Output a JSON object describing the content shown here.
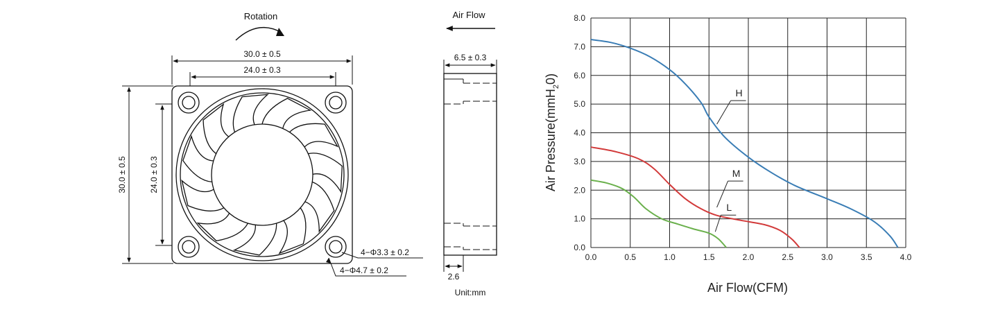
{
  "front_view": {
    "rotation_label": "Rotation",
    "outer_width": "30.0 ± 0.5",
    "hole_spacing_width": "24.0 ± 0.3",
    "outer_height": "30.0 ± 0.5",
    "hole_spacing_height": "24.0 ± 0.3",
    "hole_diameter": "4−Φ3.3 ± 0.2",
    "boss_diameter": "4−Φ4.7 ± 0.2"
  },
  "side_view": {
    "airflow_label": "Air Flow",
    "thickness": "6.5 ± 0.3",
    "flange": "2.6",
    "unit": "Unit:mm"
  },
  "chart_data": {
    "type": "line",
    "xlabel": "Air Flow(CFM)",
    "ylabel_parts": [
      "Air Pressure(mmH",
      "2",
      "0)"
    ],
    "xlim": [
      0,
      4
    ],
    "ylim": [
      0,
      8
    ],
    "xticks": [
      "0.0",
      "0.5",
      "1.0",
      "1.5",
      "2.0",
      "2.5",
      "3.0",
      "3.5",
      "4.0"
    ],
    "yticks": [
      "0.0",
      "1.0",
      "2.0",
      "3.0",
      "4.0",
      "5.0",
      "6.0",
      "7.0",
      "8.0"
    ],
    "grid": true,
    "series": [
      {
        "name": "H",
        "color": "#3a7db5",
        "x": [
          0.0,
          0.25,
          0.5,
          0.75,
          1.0,
          1.2,
          1.4,
          1.5,
          1.7,
          2.0,
          2.3,
          2.6,
          3.0,
          3.3,
          3.6,
          3.8,
          3.9
        ],
        "y": [
          7.25,
          7.15,
          6.95,
          6.65,
          6.2,
          5.7,
          5.05,
          4.55,
          3.85,
          3.15,
          2.6,
          2.15,
          1.7,
          1.35,
          0.9,
          0.4,
          0.0
        ]
      },
      {
        "name": "M",
        "color": "#d23a3a",
        "x": [
          0.0,
          0.3,
          0.6,
          0.8,
          1.0,
          1.2,
          1.4,
          1.6,
          1.9,
          2.2,
          2.4,
          2.55,
          2.65
        ],
        "y": [
          3.5,
          3.35,
          3.1,
          2.75,
          2.2,
          1.7,
          1.35,
          1.12,
          0.95,
          0.8,
          0.6,
          0.3,
          0.0
        ]
      },
      {
        "name": "L",
        "color": "#6ab04c",
        "x": [
          0.0,
          0.2,
          0.4,
          0.55,
          0.7,
          0.9,
          1.1,
          1.3,
          1.5,
          1.62,
          1.72
        ],
        "y": [
          2.35,
          2.25,
          2.05,
          1.75,
          1.35,
          1.0,
          0.82,
          0.65,
          0.5,
          0.3,
          0.0
        ]
      }
    ],
    "labels": [
      {
        "series": "H",
        "text": "H"
      },
      {
        "series": "M",
        "text": "M"
      },
      {
        "series": "L",
        "text": "L"
      }
    ]
  }
}
